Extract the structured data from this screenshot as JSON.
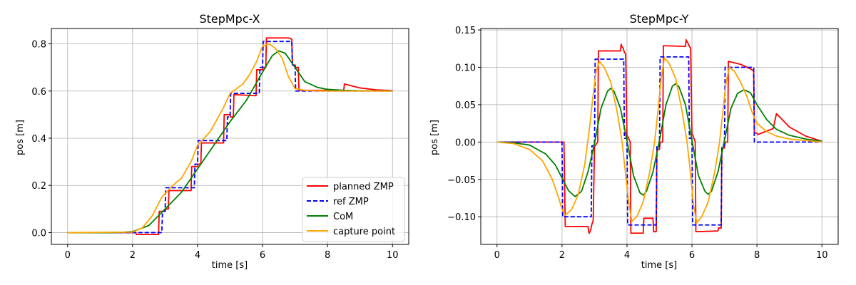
{
  "chart_data": [
    {
      "type": "line",
      "title": "StepMpc-X",
      "xlabel": "time [s]",
      "ylabel": "pos [m]",
      "xlim": [
        -0.5,
        10.5
      ],
      "ylim": [
        -0.05,
        0.865
      ],
      "xticks": [
        0,
        2,
        4,
        6,
        8,
        10
      ],
      "xtick_labels": [
        "0",
        "2",
        "4",
        "6",
        "8",
        "10"
      ],
      "yticks": [
        0.0,
        0.2,
        0.4,
        0.6,
        0.8
      ],
      "ytick_labels": [
        "0.0",
        "0.2",
        "0.4",
        "0.6",
        "0.8"
      ],
      "grid": true,
      "legend": {
        "placement": "lower-right",
        "entries": [
          "planned ZMP",
          "ref ZMP",
          "CoM",
          "capture point"
        ]
      },
      "series": [
        {
          "name": "planned ZMP",
          "color": "#ff0000",
          "style": "solid",
          "x": [
            0,
            2.1,
            2.12,
            2.8,
            2.82,
            3.0,
            3.02,
            3.1,
            3.12,
            3.8,
            3.82,
            4.0,
            4.02,
            4.1,
            4.12,
            4.8,
            4.82,
            5.0,
            5.02,
            5.1,
            5.12,
            5.8,
            5.82,
            6.0,
            6.02,
            6.1,
            6.12,
            6.8,
            6.9,
            6.92,
            7.0,
            7.02,
            7.1,
            7.12,
            8.5,
            8.52,
            9.0,
            9.5,
            10.0
          ],
          "y": [
            0.0,
            0.0,
            -0.008,
            -0.008,
            0.09,
            0.09,
            0.1,
            0.1,
            0.178,
            0.178,
            0.28,
            0.28,
            0.29,
            0.29,
            0.38,
            0.38,
            0.5,
            0.5,
            0.49,
            0.49,
            0.585,
            0.58,
            0.69,
            0.69,
            0.7,
            0.7,
            0.825,
            0.825,
            0.82,
            0.71,
            0.71,
            0.7,
            0.7,
            0.603,
            0.603,
            0.63,
            0.613,
            0.605,
            0.602
          ]
        },
        {
          "name": "ref ZMP",
          "color": "#0000ff",
          "style": "dashed",
          "x": [
            0,
            2.9,
            2.92,
            3.0,
            3.02,
            3.9,
            3.92,
            4.0,
            4.02,
            4.9,
            4.92,
            5.0,
            5.02,
            5.9,
            5.92,
            6.0,
            6.02,
            6.9,
            6.92,
            7.0,
            7.02,
            10.0
          ],
          "y": [
            0.0,
            0.0,
            0.09,
            0.09,
            0.19,
            0.19,
            0.29,
            0.29,
            0.39,
            0.39,
            0.49,
            0.49,
            0.59,
            0.59,
            0.7,
            0.7,
            0.81,
            0.81,
            0.71,
            0.71,
            0.6,
            0.6
          ]
        },
        {
          "name": "CoM",
          "color": "#008000",
          "style": "solid",
          "x": [
            0,
            1.5,
            2.0,
            2.5,
            3.0,
            3.5,
            4.0,
            4.5,
            5.0,
            5.5,
            6.0,
            6.3,
            6.5,
            6.7,
            7.0,
            7.3,
            7.7,
            8.0,
            8.5,
            9.0,
            10.0
          ],
          "y": [
            0.0,
            0.0,
            0.004,
            0.03,
            0.1,
            0.17,
            0.27,
            0.37,
            0.47,
            0.56,
            0.68,
            0.75,
            0.77,
            0.76,
            0.7,
            0.64,
            0.615,
            0.607,
            0.603,
            0.601,
            0.6
          ]
        },
        {
          "name": "capture point",
          "color": "#ffa500",
          "style": "solid",
          "x": [
            0,
            2.0,
            2.3,
            2.6,
            2.9,
            3.2,
            3.5,
            3.8,
            4.0,
            4.2,
            4.4,
            4.6,
            4.8,
            5.0,
            5.2,
            5.4,
            5.6,
            5.8,
            6.0,
            6.2,
            6.4,
            6.6,
            6.8,
            7.0,
            7.3,
            7.6,
            8.0,
            9.0,
            10.0
          ],
          "y": [
            0.0,
            0.002,
            0.02,
            0.07,
            0.15,
            0.195,
            0.23,
            0.3,
            0.37,
            0.4,
            0.43,
            0.48,
            0.53,
            0.59,
            0.61,
            0.63,
            0.67,
            0.72,
            0.79,
            0.8,
            0.78,
            0.74,
            0.66,
            0.61,
            0.603,
            0.601,
            0.6,
            0.6,
            0.6
          ]
        }
      ]
    },
    {
      "type": "line",
      "title": "StepMpc-Y",
      "xlabel": "time [s]",
      "ylabel": "pos [m]",
      "xlim": [
        -0.5,
        10.5
      ],
      "ylim": [
        -0.137,
        0.152
      ],
      "xticks": [
        0,
        2,
        4,
        6,
        8,
        10
      ],
      "xtick_labels": [
        "0",
        "2",
        "4",
        "6",
        "8",
        "10"
      ],
      "yticks": [
        -0.1,
        -0.05,
        0.0,
        0.05,
        0.1,
        0.15
      ],
      "ytick_labels": [
        "−0.10",
        "−0.05",
        "0.00",
        "0.05",
        "0.10",
        "0.15"
      ],
      "grid": true,
      "legend": null,
      "series": [
        {
          "name": "planned ZMP",
          "color": "#ff0000",
          "style": "solid",
          "x": [
            0,
            2.06,
            2.1,
            2.8,
            2.82,
            2.84,
            2.88,
            2.92,
            2.96,
            3.0,
            3.02,
            3.1,
            3.12,
            3.8,
            3.82,
            3.84,
            3.88,
            3.92,
            3.96,
            4.0,
            4.02,
            4.1,
            4.12,
            4.5,
            4.52,
            4.8,
            4.82,
            4.9,
            4.92,
            5.0,
            5.02,
            5.1,
            5.12,
            5.8,
            5.82,
            5.84,
            5.88,
            5.92,
            5.96,
            6.0,
            6.02,
            6.1,
            6.12,
            6.8,
            6.82,
            6.9,
            6.92,
            7.0,
            7.02,
            7.1,
            7.12,
            7.5,
            7.8,
            7.9,
            7.92,
            8.0,
            8.02,
            8.5,
            8.6,
            9.0,
            9.5,
            10.0
          ],
          "y": [
            0.0,
            0.0,
            -0.113,
            -0.113,
            -0.12,
            -0.122,
            -0.118,
            -0.11,
            -0.105,
            -0.005,
            -0.005,
            0.0,
            0.122,
            0.122,
            0.131,
            0.128,
            0.126,
            0.12,
            0.118,
            0.008,
            0.008,
            0.0,
            -0.122,
            -0.122,
            -0.102,
            -0.102,
            -0.12,
            -0.12,
            -0.01,
            -0.01,
            0.0,
            0.0,
            0.129,
            0.128,
            0.137,
            0.135,
            0.132,
            0.128,
            0.126,
            0.01,
            0.01,
            0.0,
            -0.12,
            -0.119,
            -0.115,
            -0.115,
            -0.008,
            -0.008,
            0.0,
            0.0,
            0.108,
            0.104,
            0.098,
            0.095,
            0.012,
            0.012,
            0.01,
            0.018,
            0.038,
            0.02,
            0.008,
            0.001
          ]
        },
        {
          "name": "ref ZMP",
          "color": "#0000ff",
          "style": "dashed",
          "x": [
            0,
            2.0,
            2.02,
            2.9,
            2.92,
            3.0,
            3.02,
            3.9,
            3.92,
            4.0,
            4.02,
            4.9,
            4.92,
            5.0,
            5.02,
            5.9,
            5.92,
            6.0,
            6.02,
            6.9,
            6.92,
            7.0,
            7.02,
            7.9,
            7.92,
            10.0
          ],
          "y": [
            0.0,
            0.0,
            -0.1,
            -0.1,
            -0.005,
            -0.005,
            0.111,
            0.111,
            0.005,
            0.005,
            -0.111,
            -0.111,
            -0.005,
            -0.005,
            0.114,
            0.114,
            0.005,
            0.005,
            -0.111,
            -0.111,
            -0.005,
            -0.005,
            0.1,
            0.1,
            0.0,
            0.0
          ]
        },
        {
          "name": "CoM",
          "color": "#008000",
          "style": "solid",
          "x": [
            0,
            0.5,
            1.0,
            1.5,
            1.8,
            2.0,
            2.2,
            2.4,
            2.6,
            2.8,
            3.0,
            3.2,
            3.4,
            3.5,
            3.6,
            3.8,
            4.0,
            4.2,
            4.4,
            4.5,
            4.6,
            4.8,
            5.0,
            5.2,
            5.4,
            5.5,
            5.6,
            5.8,
            6.0,
            6.2,
            6.4,
            6.5,
            6.6,
            6.8,
            7.0,
            7.2,
            7.4,
            7.6,
            7.8,
            8.0,
            8.3,
            8.6,
            9.0,
            9.5,
            10.0
          ],
          "y": [
            0.0,
            -0.001,
            -0.004,
            -0.016,
            -0.031,
            -0.048,
            -0.065,
            -0.073,
            -0.066,
            -0.04,
            -0.002,
            0.045,
            0.068,
            0.072,
            0.068,
            0.045,
            0.002,
            -0.045,
            -0.068,
            -0.071,
            -0.066,
            -0.04,
            0.002,
            0.05,
            0.075,
            0.078,
            0.074,
            0.05,
            0.002,
            -0.045,
            -0.066,
            -0.07,
            -0.066,
            -0.04,
            0.002,
            0.045,
            0.065,
            0.07,
            0.066,
            0.05,
            0.03,
            0.017,
            0.009,
            0.004,
            0.001
          ]
        },
        {
          "name": "capture point",
          "color": "#ffa500",
          "style": "solid",
          "x": [
            0,
            0.5,
            1.0,
            1.4,
            1.7,
            1.9,
            2.0,
            2.1,
            2.3,
            2.5,
            2.7,
            2.85,
            2.95,
            3.05,
            3.15,
            3.3,
            3.5,
            3.7,
            3.85,
            3.95,
            4.05,
            4.15,
            4.3,
            4.5,
            4.7,
            4.85,
            4.95,
            5.05,
            5.15,
            5.3,
            5.5,
            5.7,
            5.85,
            5.95,
            6.05,
            6.15,
            6.3,
            6.5,
            6.7,
            6.85,
            6.95,
            7.05,
            7.15,
            7.3,
            7.5,
            7.7,
            7.85,
            8.0,
            8.3,
            8.6,
            9.0,
            9.5,
            10.0
          ],
          "y": [
            0.0,
            -0.002,
            -0.01,
            -0.025,
            -0.05,
            -0.075,
            -0.09,
            -0.098,
            -0.09,
            -0.07,
            -0.03,
            0.02,
            0.06,
            0.095,
            0.108,
            0.1,
            0.08,
            0.04,
            0.0,
            -0.04,
            -0.08,
            -0.106,
            -0.1,
            -0.08,
            -0.04,
            0.0,
            0.04,
            0.085,
            0.113,
            0.105,
            0.085,
            0.04,
            0.0,
            -0.04,
            -0.085,
            -0.108,
            -0.1,
            -0.08,
            -0.04,
            0.0,
            0.04,
            0.08,
            0.1,
            0.095,
            0.08,
            0.06,
            0.04,
            0.025,
            0.014,
            0.008,
            0.004,
            0.002,
            0.0
          ]
        }
      ]
    }
  ]
}
